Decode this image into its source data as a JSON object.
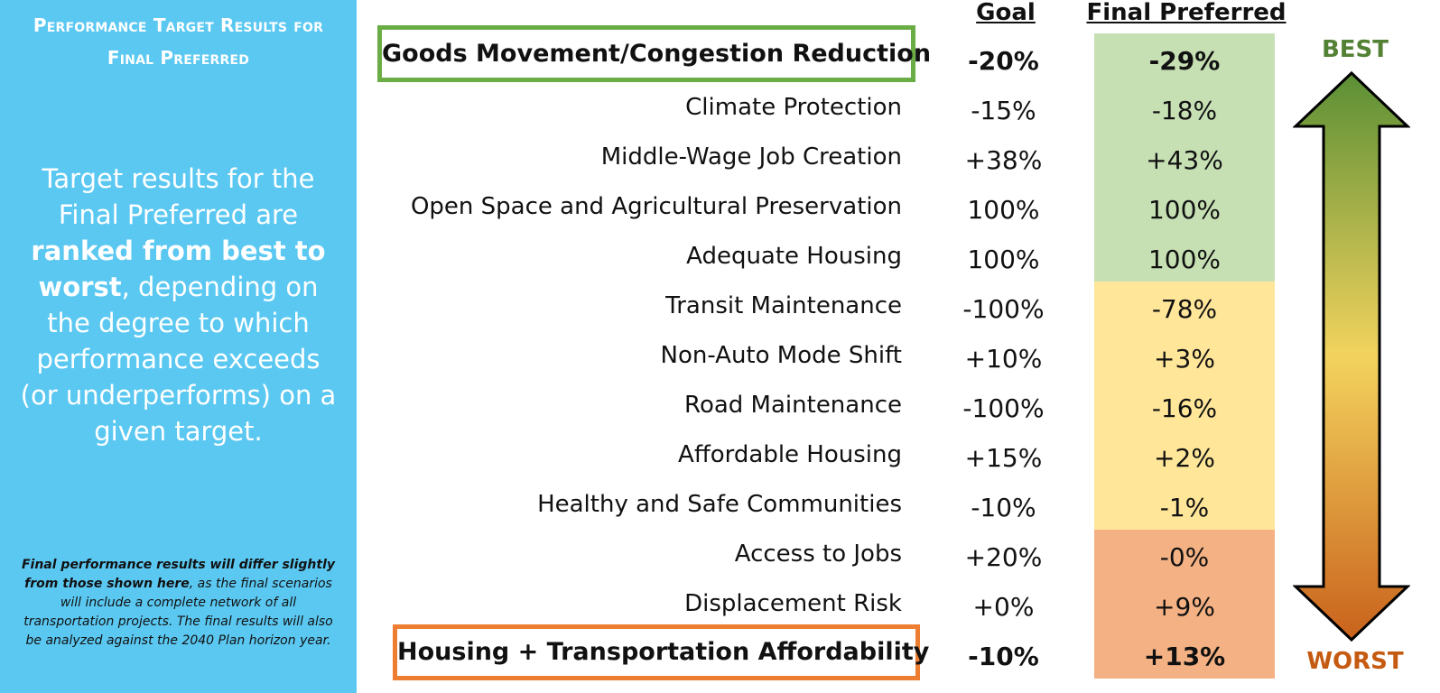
{
  "sidebar": {
    "title": "Performance Target Results for Final Preferred",
    "body_pre": "Target results for the Final Preferred are ",
    "body_bold": "ranked from best to worst",
    "body_post": ", depending on the degree to which performance exceeds (or underperforms) on a given target.",
    "note_bold": "Final performance results will differ slightly from those shown here",
    "note_rest": ", as the final scenarios will include a complete network of all transportation projects. The final results will also be analyzed against the 2040 Plan horizon year."
  },
  "headers": {
    "goal": "Goal",
    "final": "Final Preferred"
  },
  "rows": [
    {
      "label": "Goods Movement/Congestion Reduction",
      "goal": "-20%",
      "final": "-29%",
      "band": "green"
    },
    {
      "label": "Climate Protection",
      "goal": "-15%",
      "final": "-18%",
      "band": "green"
    },
    {
      "label": "Middle-Wage Job Creation",
      "goal": "+38%",
      "final": "+43%",
      "band": "green"
    },
    {
      "label": "Open Space and Agricultural Preservation",
      "goal": "100%",
      "final": "100%",
      "band": "green"
    },
    {
      "label": "Adequate Housing",
      "goal": "100%",
      "final": "100%",
      "band": "green"
    },
    {
      "label": "Transit Maintenance",
      "goal": "-100%",
      "final": "-78%",
      "band": "yellow"
    },
    {
      "label": "Non-Auto Mode Shift",
      "goal": "+10%",
      "final": "+3%",
      "band": "yellow"
    },
    {
      "label": "Road Maintenance",
      "goal": "-100%",
      "final": "-16%",
      "band": "yellow"
    },
    {
      "label": "Affordable Housing",
      "goal": "+15%",
      "final": "+2%",
      "band": "yellow"
    },
    {
      "label": "Healthy and Safe Communities",
      "goal": "-10%",
      "final": "-1%",
      "band": "yellow"
    },
    {
      "label": "Access to Jobs",
      "goal": "+20%",
      "final": "-0%",
      "band": "orange"
    },
    {
      "label": "Displacement Risk",
      "goal": "+0%",
      "final": "+9%",
      "band": "orange"
    },
    {
      "label": "Housing + Transportation Affordability",
      "goal": "-10%",
      "final": "+13%",
      "band": "orange"
    }
  ],
  "scale": {
    "best": "BEST",
    "worst": "WORST"
  },
  "colors": {
    "sidebar": "#5bc8f2",
    "green": "#c6e0b4",
    "yellow": "#ffe699",
    "orange": "#f4b183",
    "highlight_top": "#6bad45",
    "highlight_bottom": "#ed7d31"
  }
}
